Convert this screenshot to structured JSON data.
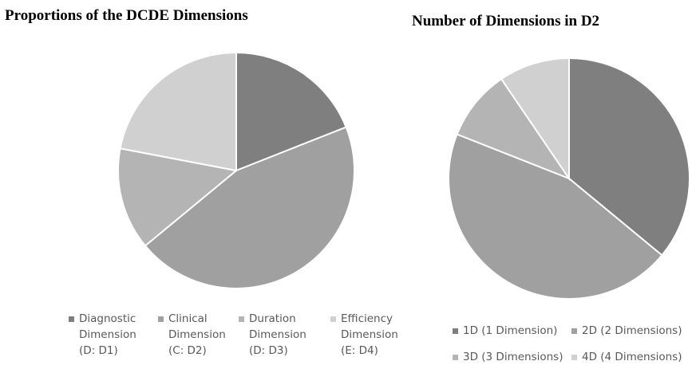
{
  "chart_data": [
    {
      "type": "pie",
      "title": "Proportions of the DCDE Dimensions",
      "legend_position": "bottom",
      "categories": [
        "Diagnostic\nDimension\n(D: D1)",
        "Clinical\nDimension\n(C: D2)",
        "Duration\nDimension\n(D: D3)",
        "Efficiency\nDimension\n(E: D4)"
      ],
      "values": [
        19,
        45,
        14,
        22
      ],
      "colors": [
        "#7f7f7f",
        "#a0a0a0",
        "#b4b4b4",
        "#d0d0d0"
      ]
    },
    {
      "type": "pie",
      "title": "Number of Dimensions in D2",
      "legend_position": "bottom",
      "categories": [
        "1D (1 Dimension)",
        "2D (2 Dimensions)",
        "3D (3 Dimensions)",
        "4D (4 Dimensions)"
      ],
      "values": [
        36,
        45,
        9.5,
        9.5
      ],
      "colors": [
        "#7f7f7f",
        "#a0a0a0",
        "#b4b4b4",
        "#d0d0d0"
      ]
    }
  ]
}
